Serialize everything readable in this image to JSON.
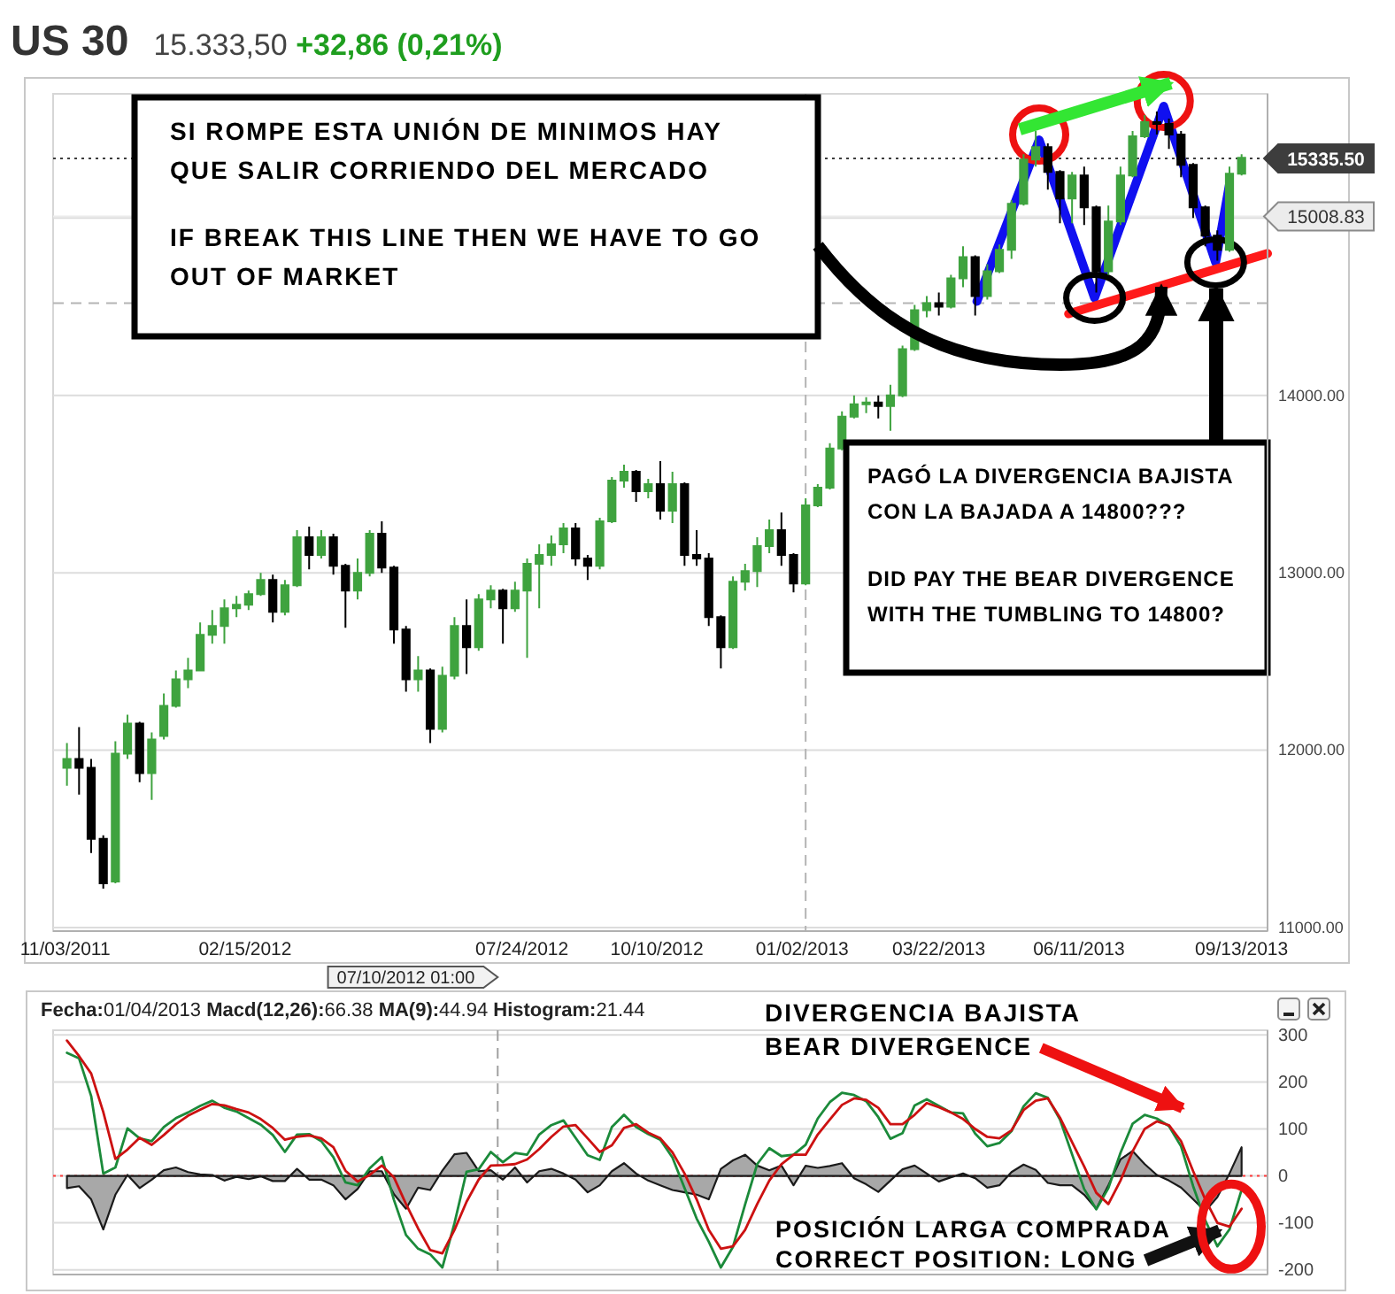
{
  "chart_data": [
    {
      "type": "candlestick",
      "title": "US 30",
      "subtitle": "15.333,50 +32,86 (0,21%)",
      "x": [
        "2011-11-04",
        "2011-11-11",
        "2011-11-18",
        "2011-11-25",
        "2011-12-02",
        "2011-12-09",
        "2011-12-16",
        "2011-12-23",
        "2011-12-30",
        "2012-01-06",
        "2012-01-13",
        "2012-01-20",
        "2012-01-27",
        "2012-02-03",
        "2012-02-10",
        "2012-02-17",
        "2012-02-24",
        "2012-03-02",
        "2012-03-09",
        "2012-03-16",
        "2012-03-23",
        "2012-03-30",
        "2012-04-06",
        "2012-04-13",
        "2012-04-20",
        "2012-04-27",
        "2012-05-04",
        "2012-05-11",
        "2012-05-18",
        "2012-05-25",
        "2012-06-01",
        "2012-06-08",
        "2012-06-15",
        "2012-06-22",
        "2012-06-29",
        "2012-07-06",
        "2012-07-13",
        "2012-07-20",
        "2012-07-27",
        "2012-08-03",
        "2012-08-10",
        "2012-08-17",
        "2012-08-24",
        "2012-08-31",
        "2012-09-07",
        "2012-09-14",
        "2012-09-21",
        "2012-09-28",
        "2012-10-05",
        "2012-10-12",
        "2012-10-19",
        "2012-10-26",
        "2012-11-02",
        "2012-11-09",
        "2012-11-16",
        "2012-11-23",
        "2012-11-30",
        "2012-12-07",
        "2012-12-14",
        "2012-12-21",
        "2012-12-28",
        "2013-01-04",
        "2013-01-11",
        "2013-01-18",
        "2013-01-25",
        "2013-02-01",
        "2013-02-08",
        "2013-02-15",
        "2013-02-22",
        "2013-03-01",
        "2013-03-08",
        "2013-03-15",
        "2013-03-22",
        "2013-03-29",
        "2013-04-05",
        "2013-04-12",
        "2013-04-19",
        "2013-04-26",
        "2013-05-03",
        "2013-05-10",
        "2013-05-17",
        "2013-05-24",
        "2013-05-31",
        "2013-06-07",
        "2013-06-14",
        "2013-06-21",
        "2013-06-28",
        "2013-07-05",
        "2013-07-12",
        "2013-07-19",
        "2013-07-26",
        "2013-08-02",
        "2013-08-09",
        "2013-08-16",
        "2013-08-23",
        "2013-08-30",
        "2013-09-06",
        "2013-09-13"
      ],
      "ohlc": [
        [
          11900,
          12040,
          11800,
          11950
        ],
        [
          11950,
          12130,
          11750,
          11900
        ],
        [
          11900,
          11950,
          11420,
          11500
        ],
        [
          11500,
          11520,
          11220,
          11250
        ],
        [
          11260,
          12050,
          11250,
          11980
        ],
        [
          11980,
          12200,
          11950,
          12150
        ],
        [
          12150,
          12160,
          11820,
          11870
        ],
        [
          11870,
          12100,
          11720,
          12060
        ],
        [
          12080,
          12320,
          12060,
          12250
        ],
        [
          12250,
          12450,
          12240,
          12400
        ],
        [
          12400,
          12520,
          12350,
          12450
        ],
        [
          12450,
          12720,
          12450,
          12650
        ],
        [
          12650,
          12790,
          12600,
          12700
        ],
        [
          12700,
          12850,
          12600,
          12800
        ],
        [
          12800,
          12870,
          12750,
          12820
        ],
        [
          12820,
          12900,
          12790,
          12880
        ],
        [
          12880,
          13000,
          12870,
          12960
        ],
        [
          12960,
          12990,
          12720,
          12780
        ],
        [
          12780,
          12960,
          12760,
          12930
        ],
        [
          12930,
          13240,
          12920,
          13200
        ],
        [
          13200,
          13260,
          13020,
          13100
        ],
        [
          13100,
          13240,
          13080,
          13200
        ],
        [
          13200,
          13220,
          12990,
          13040
        ],
        [
          13040,
          13050,
          12690,
          12900
        ],
        [
          12900,
          13080,
          12850,
          13000
        ],
        [
          13000,
          13240,
          12980,
          13220
        ],
        [
          13220,
          13290,
          13000,
          13030
        ],
        [
          13030,
          13040,
          12600,
          12680
        ],
        [
          12680,
          12700,
          12330,
          12400
        ],
        [
          12400,
          12530,
          12330,
          12450
        ],
        [
          12450,
          12460,
          12040,
          12120
        ],
        [
          12120,
          12470,
          12100,
          12420
        ],
        [
          12420,
          12750,
          12400,
          12700
        ],
        [
          12700,
          12850,
          12430,
          12580
        ],
        [
          12580,
          12880,
          12560,
          12850
        ],
        [
          12850,
          12930,
          12800,
          12900
        ],
        [
          12900,
          12910,
          12600,
          12800
        ],
        [
          12800,
          12950,
          12780,
          12900
        ],
        [
          12900,
          13080,
          12520,
          13050
        ],
        [
          13050,
          13160,
          12800,
          13100
        ],
        [
          13100,
          13210,
          13040,
          13160
        ],
        [
          13160,
          13280,
          13110,
          13250
        ],
        [
          13250,
          13280,
          13040,
          13080
        ],
        [
          13080,
          13100,
          12960,
          13040
        ],
        [
          13040,
          13310,
          13020,
          13290
        ],
        [
          13290,
          13540,
          13280,
          13520
        ],
        [
          13520,
          13610,
          13480,
          13570
        ],
        [
          13570,
          13580,
          13400,
          13460
        ],
        [
          13460,
          13530,
          13420,
          13500
        ],
        [
          13500,
          13630,
          13300,
          13350
        ],
        [
          13350,
          13570,
          13280,
          13500
        ],
        [
          13500,
          13510,
          13040,
          13100
        ],
        [
          13100,
          13240,
          13040,
          13080
        ],
        [
          13080,
          13110,
          12700,
          12750
        ],
        [
          12750,
          12760,
          12460,
          12580
        ],
        [
          12580,
          12980,
          12570,
          12950
        ],
        [
          12950,
          13050,
          12900,
          13010
        ],
        [
          13010,
          13200,
          12920,
          13150
        ],
        [
          13150,
          13300,
          13110,
          13240
        ],
        [
          13240,
          13340,
          13040,
          13100
        ],
        [
          13100,
          13110,
          12890,
          12940
        ],
        [
          12940,
          13420,
          12930,
          13380
        ],
        [
          13380,
          13500,
          13370,
          13480
        ],
        [
          13480,
          13730,
          13470,
          13700
        ],
        [
          13700,
          13910,
          13690,
          13880
        ],
        [
          13880,
          14000,
          13870,
          13950
        ],
        [
          13950,
          13990,
          13900,
          13960
        ],
        [
          13960,
          14000,
          13870,
          13940
        ],
        [
          13940,
          14060,
          13800,
          14000
        ],
        [
          14000,
          14280,
          13990,
          14260
        ],
        [
          14260,
          14510,
          14250,
          14480
        ],
        [
          14480,
          14560,
          14440,
          14520
        ],
        [
          14520,
          14580,
          14450,
          14500
        ],
        [
          14500,
          14680,
          14490,
          14660
        ],
        [
          14660,
          14840,
          14610,
          14780
        ],
        [
          14780,
          14790,
          14450,
          14560
        ],
        [
          14560,
          14740,
          14540,
          14700
        ],
        [
          14700,
          14850,
          14690,
          14820
        ],
        [
          14820,
          15100,
          14770,
          15080
        ],
        [
          15080,
          15360,
          15070,
          15330
        ],
        [
          15330,
          15490,
          15290,
          15400
        ],
        [
          15400,
          15420,
          15160,
          15260
        ],
        [
          15260,
          15270,
          14970,
          15110
        ],
        [
          15110,
          15260,
          14970,
          15240
        ],
        [
          15240,
          15290,
          14960,
          15060
        ],
        [
          15060,
          15070,
          14580,
          14700
        ],
        [
          14700,
          15070,
          14680,
          14980
        ],
        [
          14980,
          15290,
          14960,
          15240
        ],
        [
          15240,
          15490,
          15230,
          15460
        ],
        [
          15460,
          15580,
          15450,
          15540
        ],
        [
          15540,
          15600,
          15470,
          15530
        ],
        [
          15530,
          15560,
          15390,
          15470
        ],
        [
          15470,
          15490,
          15230,
          15300
        ],
        [
          15300,
          15310,
          15000,
          15060
        ],
        [
          15060,
          15070,
          14840,
          14900
        ],
        [
          14900,
          14930,
          14760,
          14820
        ],
        [
          14820,
          15290,
          14810,
          15250
        ],
        [
          15250,
          15360,
          15240,
          15340
        ]
      ],
      "colors": [
        "#3fa33f",
        "#000000",
        "#000000",
        "#000000",
        "#3fa33f",
        "#3fa33f",
        "#000000",
        "#3fa33f",
        "#3fa33f",
        "#3fa33f",
        "#3fa33f",
        "#3fa33f",
        "#3fa33f",
        "#3fa33f",
        "#3fa33f",
        "#3fa33f",
        "#3fa33f",
        "#000000",
        "#3fa33f",
        "#3fa33f",
        "#000000",
        "#3fa33f",
        "#000000",
        "#000000",
        "#3fa33f",
        "#3fa33f",
        "#000000",
        "#000000",
        "#000000",
        "#3fa33f",
        "#000000",
        "#3fa33f",
        "#3fa33f",
        "#000000",
        "#3fa33f",
        "#3fa33f",
        "#000000",
        "#3fa33f",
        "#3fa33f",
        "#3fa33f",
        "#3fa33f",
        "#3fa33f",
        "#000000",
        "#000000",
        "#3fa33f",
        "#3fa33f",
        "#3fa33f",
        "#000000",
        "#3fa33f",
        "#000000",
        "#3fa33f",
        "#000000",
        "#000000",
        "#000000",
        "#000000",
        "#3fa33f",
        "#3fa33f",
        "#3fa33f",
        "#3fa33f",
        "#000000",
        "#000000",
        "#3fa33f",
        "#3fa33f",
        "#3fa33f",
        "#3fa33f",
        "#3fa33f",
        "#3fa33f",
        "#000000",
        "#3fa33f",
        "#3fa33f",
        "#3fa33f",
        "#3fa33f",
        "#000000",
        "#3fa33f",
        "#3fa33f",
        "#000000",
        "#3fa33f",
        "#3fa33f",
        "#3fa33f",
        "#3fa33f",
        "#3fa33f",
        "#000000",
        "#000000",
        "#3fa33f",
        "#000000",
        "#000000",
        "#3fa33f",
        "#3fa33f",
        "#3fa33f",
        "#3fa33f",
        "#000000",
        "#000000",
        "#000000",
        "#000000",
        "#000000",
        "#000000",
        "#3fa33f",
        "#3fa33f"
      ],
      "series": [
        {
          "type": "line",
          "color": "#1010f0",
          "x": [
            "2013-04-13",
            "2013-05-19",
            "2013-06-20",
            "2013-07-30",
            "2013-08-29",
            "2013-09-06"
          ],
          "values": [
            14530,
            15440,
            14550,
            15630,
            14750,
            15190
          ]
        },
        {
          "type": "line",
          "color": "#ff1a1a",
          "x": [
            "2013-06-05",
            "2013-09-28"
          ],
          "values": [
            14460,
            14800
          ]
        }
      ],
      "xlim": [
        "2011-10-27",
        "2013-09-28"
      ],
      "xticks": [
        {
          "value": "2011-11-03",
          "label": "11/03/2011"
        },
        {
          "value": "2012-02-15",
          "label": "02/15/2012"
        },
        {
          "value": "2012-07-24",
          "label": "07/24/2012"
        },
        {
          "value": "2012-10-10",
          "label": "10/10/2012"
        },
        {
          "value": "2013-01-02",
          "label": "01/02/2013"
        },
        {
          "value": "2013-03-22",
          "label": "03/22/2013"
        },
        {
          "value": "2013-06-11",
          "label": "06/11/2013"
        },
        {
          "value": "2013-09-13",
          "label": "09/13/2013"
        }
      ],
      "ylim": [
        10980,
        15700
      ],
      "yticks": [
        {
          "value": 11000,
          "label": "11000.00"
        },
        {
          "value": 12000,
          "label": "12000.00"
        },
        {
          "value": 13000,
          "label": "13000.00"
        },
        {
          "value": 14000,
          "label": "14000.00"
        },
        {
          "value": 15000,
          "label": null
        }
      ],
      "grid": "y",
      "ref_lines": [
        {
          "axis": "y",
          "value": 15335.5,
          "label": "15335.50",
          "color": "#3d3d3d",
          "line_style": "dotted"
        },
        {
          "axis": "y",
          "value": 15008.83,
          "label": "15008.83",
          "color": "#ececec",
          "line_style": "solid"
        },
        {
          "axis": "y",
          "value": 14520,
          "color": "#b4b4b4",
          "line_style": "dashed"
        },
        {
          "axis": "x",
          "value": "2013-01-04",
          "color": "#b4b4b4",
          "line_style": "dashed"
        }
      ],
      "annotations": [
        "SI ROMPE ESTA UNIÓN DE MINIMOS HAY QUE SALIR CORRIENDO DEL MERCADO",
        "IF BREAK THIS LINE THEN WE HAVE TO GO OUT OF MARKET",
        "PAGÓ LA DIVERGENCIA BAJISTA CON LA BAJADA A 14800???",
        "DID PAY THE BEAR DIVERGENCE WITH THE TUMBLING TO 14800?"
      ]
    },
    {
      "type": "line",
      "title": "Fecha:01/04/2013 Macd(12,26):66.38 MA(9):44.94 Histogram:21.44",
      "x": [
        "2011-11-04",
        "2011-11-11",
        "2011-11-18",
        "2011-11-25",
        "2011-12-02",
        "2011-12-09",
        "2011-12-16",
        "2011-12-23",
        "2011-12-30",
        "2012-01-06",
        "2012-01-13",
        "2012-01-20",
        "2012-01-27",
        "2012-02-03",
        "2012-02-10",
        "2012-02-17",
        "2012-02-24",
        "2012-03-02",
        "2012-03-09",
        "2012-03-16",
        "2012-03-23",
        "2012-03-30",
        "2012-04-06",
        "2012-04-13",
        "2012-04-20",
        "2012-04-27",
        "2012-05-04",
        "2012-05-11",
        "2012-05-18",
        "2012-05-25",
        "2012-06-01",
        "2012-06-08",
        "2012-06-15",
        "2012-06-22",
        "2012-06-29",
        "2012-07-06",
        "2012-07-13",
        "2012-07-20",
        "2012-07-27",
        "2012-08-03",
        "2012-08-10",
        "2012-08-17",
        "2012-08-24",
        "2012-08-31",
        "2012-09-07",
        "2012-09-14",
        "2012-09-21",
        "2012-09-28",
        "2012-10-05",
        "2012-10-12",
        "2012-10-19",
        "2012-10-26",
        "2012-11-02",
        "2012-11-09",
        "2012-11-16",
        "2012-11-23",
        "2012-11-30",
        "2012-12-07",
        "2012-12-14",
        "2012-12-21",
        "2012-12-28",
        "2013-01-04",
        "2013-01-11",
        "2013-01-18",
        "2013-01-25",
        "2013-02-01",
        "2013-02-08",
        "2013-02-15",
        "2013-02-22",
        "2013-03-01",
        "2013-03-08",
        "2013-03-15",
        "2013-03-22",
        "2013-03-29",
        "2013-04-05",
        "2013-04-12",
        "2013-04-19",
        "2013-04-26",
        "2013-05-03",
        "2013-05-10",
        "2013-05-17",
        "2013-05-24",
        "2013-05-31",
        "2013-06-07",
        "2013-06-14",
        "2013-06-21",
        "2013-06-28",
        "2013-07-05",
        "2013-07-12",
        "2013-07-19",
        "2013-07-26",
        "2013-08-02",
        "2013-08-09",
        "2013-08-16",
        "2013-08-23",
        "2013-08-30",
        "2013-09-06",
        "2013-09-13"
      ],
      "series": [
        {
          "type": "area",
          "color": "#a8a8a8",
          "values": [
            -26,
            -22,
            -50,
            -114,
            -40,
            2,
            -26,
            -8,
            12,
            18,
            8,
            3,
            2,
            -10,
            -2,
            -7,
            -1,
            -11,
            -11,
            15,
            -8,
            -8,
            -20,
            -50,
            -28,
            10,
            10,
            -39,
            -70,
            -25,
            -30,
            11,
            46,
            49,
            10,
            12,
            -8,
            18,
            -14,
            10,
            15,
            5,
            -8,
            -35,
            -20,
            10,
            27,
            5,
            -10,
            -20,
            -30,
            -35,
            -40,
            -50,
            15,
            33,
            45,
            22,
            12,
            22,
            -20,
            21.44,
            17,
            21,
            27,
            -5,
            -18,
            -34,
            -10,
            14,
            22,
            5,
            -12,
            -3,
            5,
            -5,
            -25,
            -20,
            8,
            24,
            13,
            -15,
            -20,
            -20,
            -40,
            -70,
            -20,
            35,
            53,
            25,
            2,
            -10,
            -25,
            -50,
            -75,
            -45,
            5,
            61
          ]
        },
        {
          "type": "line",
          "color": "#1b8a3a",
          "values": [
            262,
            250,
            170,
            5,
            18,
            101,
            80,
            74,
            104,
            123,
            135,
            149,
            160,
            145,
            137,
            123,
            109,
            87,
            51,
            88,
            89,
            74,
            40,
            -14,
            -20,
            16,
            40,
            -51,
            -126,
            -155,
            -167,
            -195,
            -101,
            9,
            14,
            51,
            29,
            49,
            45,
            88,
            108,
            118,
            81,
            44,
            34,
            104,
            130,
            104,
            89,
            77,
            39,
            -26,
            -91,
            -140,
            -195,
            -151,
            -61,
            25,
            59,
            42,
            45,
            66.38,
            122,
            157,
            177,
            172,
            159,
            125,
            79,
            91,
            150,
            163,
            149,
            135,
            133,
            90,
            63,
            70,
            95,
            148,
            176,
            166,
            120,
            46,
            -28,
            -71,
            -26,
            49,
            111,
            130,
            122,
            106,
            63,
            -22,
            -95,
            -150,
            -114,
            -30
          ]
        },
        {
          "type": "line",
          "color": "#cc1111",
          "values": [
            288,
            255,
            218,
            136,
            36,
            56,
            81,
            66,
            87,
            110,
            128,
            141,
            153,
            150,
            142,
            135,
            121,
            102,
            77,
            83,
            86,
            80,
            61,
            11,
            -12,
            2,
            22,
            -3,
            -60,
            -112,
            -158,
            -165,
            -115,
            -55,
            -8,
            22,
            23,
            25,
            35,
            57,
            83,
            105,
            108,
            80,
            51,
            65,
            102,
            110,
            92,
            80,
            50,
            5,
            -50,
            -115,
            -155,
            -150,
            -115,
            -60,
            -10,
            25,
            45,
            44.94,
            88,
            120,
            151,
            165,
            162,
            145,
            110,
            110,
            130,
            155,
            146,
            135,
            121,
            100,
            83,
            80,
            97,
            140,
            160,
            165,
            124,
            72,
            20,
            -36,
            -60,
            -10,
            52,
            100,
            116,
            108,
            74,
            10,
            -50,
            -100,
            -108,
            -70
          ]
        }
      ],
      "xlim": [
        "2011-10-27",
        "2013-09-28"
      ],
      "ylim": [
        -210,
        310
      ],
      "yticks": [
        300,
        200,
        100,
        0,
        -100,
        -200
      ],
      "tick_labels": "y",
      "grid": "y",
      "ref_lines": [
        {
          "axis": "y",
          "value": 0,
          "color": "#ff3b3b",
          "line_style": "dotted"
        },
        {
          "axis": "x",
          "value": "2012-07-10",
          "label": "07/10/2012 01:00",
          "color": "#a0a0a0",
          "line_style": "dashed"
        }
      ],
      "annotations": [
        "DIVERGENCIA BAJISTA",
        "BEAR DIVERGENCE",
        {
          "text": "POSICIÓN LARGA COMPRADA",
          "x": "2013-09-06",
          "y": -108
        },
        "CORRECT POSITION: LONG"
      ]
    }
  ]
}
